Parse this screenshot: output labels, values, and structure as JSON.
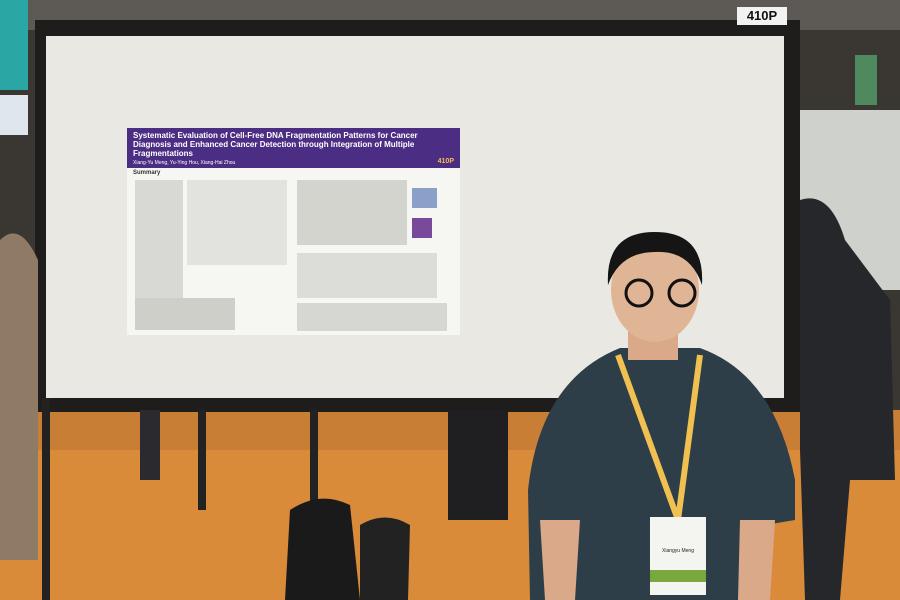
{
  "sign": {
    "label": "410P"
  },
  "poster": {
    "title": "Systematic Evaluation of Cell-Free DNA Fragmentation Patterns for Cancer Diagnosis and Enhanced Cancer Detection through Integration of Multiple Fragmentations",
    "authors": "Xiang-Yu Meng, Yu-Ying Hou, Xiang-Hai Zhou",
    "number": "410P",
    "section": "Summary"
  },
  "badge": {
    "name": "Xiangyu Meng"
  }
}
